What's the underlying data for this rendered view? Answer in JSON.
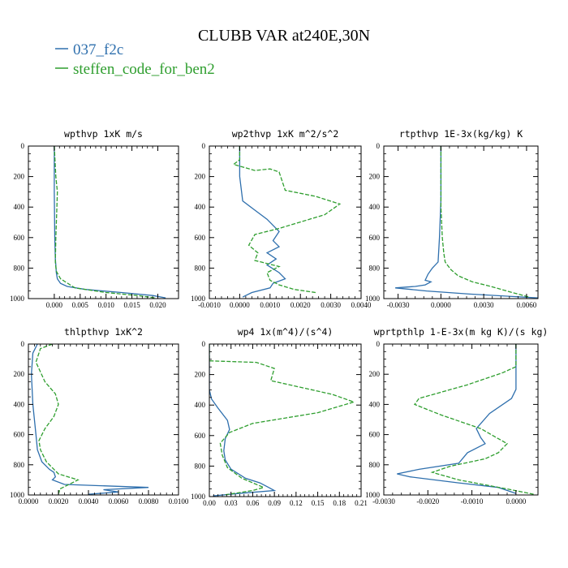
{
  "title": "CLUBB VAR at240E,30N",
  "legend": [
    {
      "name": "037_f2c",
      "color": "#2e6fad",
      "dash": "solid"
    },
    {
      "name": "steffen_code_for_ben2",
      "color": "#2e9e2e",
      "dash": "dashed"
    }
  ],
  "chart_data": [
    {
      "type": "line",
      "title": "wpthvp  1xK m/s",
      "xlim": [
        -0.005,
        0.024
      ],
      "ylim": [
        0,
        1000
      ],
      "y_inverted": true,
      "xticks": [
        0.0,
        0.005,
        0.01,
        0.015,
        0.02
      ],
      "xtick_labels": [
        "0.000",
        "0.005",
        "0.010",
        "0.015",
        "0.020"
      ],
      "yticks": [
        0,
        200,
        400,
        600,
        800,
        1000
      ],
      "ytick_labels": [
        "0",
        "200",
        "400",
        "600",
        "800",
        "1000"
      ],
      "series": [
        {
          "name": "037_f2c",
          "x": [
            0,
            0,
            0.0001,
            0.0002,
            0.0003,
            0.0004,
            0.0006,
            0.0012,
            0.0025,
            0.006,
            0.013,
            0.019,
            0.0215
          ],
          "y": [
            0,
            300,
            600,
            740,
            780,
            830,
            870,
            900,
            920,
            940,
            960,
            980,
            995
          ]
        },
        {
          "name": "steffen_code_for_ben2",
          "x": [
            0,
            0.0003,
            0.0006,
            0.0005,
            0.0003,
            0.0002,
            0.0004,
            0.0012,
            0.004,
            0.01,
            0.016,
            0.0195
          ],
          "y": [
            0,
            200,
            300,
            400,
            600,
            760,
            820,
            870,
            930,
            960,
            980,
            995
          ]
        }
      ]
    },
    {
      "type": "line",
      "title": "wp2thvp  1xK m^2/s^2",
      "xlim": [
        -0.001,
        0.004
      ],
      "ylim": [
        0,
        1000
      ],
      "y_inverted": true,
      "xticks": [
        -0.001,
        0.0,
        0.001,
        0.002,
        0.003,
        0.004
      ],
      "xtick_labels": [
        "-0.0010",
        "0.0000",
        "0.0010",
        "0.0020",
        "0.0030",
        "0.0040"
      ],
      "yticks": [
        0,
        200,
        400,
        600,
        800,
        1000
      ],
      "ytick_labels": [
        "0",
        "200",
        "400",
        "600",
        "800",
        "1000"
      ],
      "series": [
        {
          "name": "037_f2c",
          "x": [
            0,
            0,
            0.0001,
            0.0005,
            0.0009,
            0.0013,
            0.0011,
            0.0013,
            0.0009,
            0.0012,
            0.0009,
            0.0013,
            0.0015,
            0.0011,
            0.001,
            0.0004,
            0.0001
          ],
          "y": [
            0,
            200,
            360,
            420,
            480,
            560,
            620,
            660,
            700,
            740,
            780,
            830,
            870,
            900,
            930,
            960,
            990
          ]
        },
        {
          "name": "steffen_code_for_ben2",
          "x": [
            0,
            0.0,
            -0.0002,
            0.0005,
            0.001,
            0.0013,
            0.0015,
            0.0025,
            0.0033,
            0.0028,
            0.0013,
            0.0005,
            0.0003,
            0.0006,
            0.0005,
            0.0013,
            0.0009,
            0.001,
            0.0013,
            0.0018,
            0.0025
          ],
          "y": [
            0,
            90,
            120,
            160,
            150,
            170,
            290,
            330,
            380,
            450,
            540,
            580,
            650,
            700,
            750,
            790,
            830,
            880,
            910,
            940,
            960
          ]
        }
      ]
    },
    {
      "type": "line",
      "title": "rtpthvp  1E-3x(kg/kg) K",
      "xlim": [
        -0.004,
        0.0068
      ],
      "ylim": [
        0,
        1000
      ],
      "y_inverted": true,
      "xticks": [
        -0.003,
        0.0,
        0.003,
        0.006
      ],
      "xtick_labels": [
        "-0.0030",
        "0.0000",
        "0.0030",
        "0.0060"
      ],
      "yticks": [
        0,
        200,
        400,
        600,
        800,
        1000
      ],
      "ytick_labels": [
        "0",
        "200",
        "400",
        "600",
        "800",
        "1000"
      ],
      "series": [
        {
          "name": "037_f2c",
          "x": [
            0,
            0,
            -0.0001,
            -0.0002,
            -0.0006,
            -0.0009,
            -0.0011,
            -0.0007,
            -0.0011,
            -0.0018,
            -0.0032,
            -0.001,
            0.002,
            0.0068
          ],
          "y": [
            0,
            350,
            600,
            760,
            800,
            840,
            880,
            890,
            910,
            920,
            930,
            950,
            970,
            995
          ]
        },
        {
          "name": "steffen_code_for_ben2",
          "x": [
            0,
            0,
            0.0001,
            0.0002,
            0.0003,
            0.0007,
            0.0012,
            0.0022,
            0.0035,
            0.005,
            0.0062
          ],
          "y": [
            0,
            400,
            600,
            700,
            760,
            810,
            850,
            890,
            920,
            960,
            990
          ]
        }
      ]
    },
    {
      "type": "line",
      "title": "thlpthvp  1xK^2",
      "xlim": [
        0,
        0.01
      ],
      "ylim": [
        0,
        1000
      ],
      "y_inverted": true,
      "xticks": [
        0.0,
        0.002,
        0.004,
        0.006,
        0.008,
        0.01
      ],
      "xtick_labels": [
        "0.0000",
        "0.0020",
        "0.0040",
        "0.0060",
        "0.0080",
        "0.0100"
      ],
      "yticks": [
        0,
        200,
        400,
        600,
        800,
        1000
      ],
      "ytick_labels": [
        "0",
        "200",
        "400",
        "600",
        "800",
        "1000"
      ],
      "series": [
        {
          "name": "037_f2c",
          "x": [
            0.0006,
            0.0003,
            0.0002,
            0.0003,
            0.0005,
            0.0006,
            0.0009,
            0.0014,
            0.0017,
            0.0018,
            0.0016,
            0.0024,
            0.008,
            0.005,
            0.006,
            0.004
          ],
          "y": [
            0,
            60,
            200,
            400,
            600,
            700,
            780,
            830,
            850,
            880,
            900,
            930,
            950,
            965,
            980,
            995
          ]
        },
        {
          "name": "steffen_code_for_ben2",
          "x": [
            0.0016,
            0.0008,
            0.0005,
            0.0011,
            0.0018,
            0.002,
            0.0017,
            0.0011,
            0.0007,
            0.0008,
            0.0012,
            0.002,
            0.0033,
            0.0027,
            0.0021,
            0.002
          ],
          "y": [
            0,
            30,
            120,
            250,
            330,
            400,
            480,
            560,
            640,
            700,
            780,
            860,
            900,
            930,
            960,
            995
          ]
        }
      ]
    },
    {
      "type": "line",
      "title": "wp4  1x(m^4)/(s^4)",
      "xlim": [
        0,
        0.21
      ],
      "ylim": [
        0,
        1000
      ],
      "y_inverted": true,
      "xticks": [
        0.0,
        0.03,
        0.06,
        0.09,
        0.12,
        0.15,
        0.18,
        0.21
      ],
      "xtick_labels": [
        "0.00",
        "0.03",
        "0.06",
        "0.09",
        "0.12",
        "0.15",
        "0.18",
        "0.21"
      ],
      "yticks": [
        0,
        200,
        400,
        600,
        800,
        1000
      ],
      "ytick_labels": [
        "0",
        "200",
        "400",
        "600",
        "800",
        "1000"
      ],
      "series": [
        {
          "name": "037_f2c",
          "x": [
            0,
            0,
            0.003,
            0.012,
            0.025,
            0.028,
            0.022,
            0.02,
            0.022,
            0.03,
            0.05,
            0.07,
            0.082,
            0.09,
            0.04,
            0.005
          ],
          "y": [
            0,
            300,
            360,
            420,
            500,
            560,
            620,
            700,
            760,
            820,
            880,
            910,
            940,
            960,
            980,
            995
          ]
        },
        {
          "name": "steffen_code_for_ben2",
          "x": [
            0,
            0.0,
            0.065,
            0.09,
            0.085,
            0.17,
            0.2,
            0.15,
            0.06,
            0.028,
            0.015,
            0.018,
            0.025,
            0.045,
            0.075,
            0.06,
            0.02
          ],
          "y": [
            0,
            110,
            120,
            160,
            240,
            330,
            380,
            450,
            520,
            580,
            650,
            730,
            810,
            880,
            940,
            960,
            990
          ]
        }
      ]
    },
    {
      "type": "line",
      "title": "wprtpthlp  1-E-3x(m kg K)/(s kg)",
      "xlim": [
        -0.003,
        0.0005
      ],
      "ylim": [
        0,
        1000
      ],
      "y_inverted": true,
      "xticks": [
        -0.003,
        -0.002,
        -0.001,
        0.0
      ],
      "xtick_labels": [
        "-0.0030",
        "-0.0020",
        "-0.0010",
        "0.0000"
      ],
      "yticks": [
        0,
        200,
        400,
        600,
        800,
        1000
      ],
      "ytick_labels": [
        "0",
        "200",
        "400",
        "600",
        "800",
        "1000"
      ],
      "series": [
        {
          "name": "037_f2c",
          "x": [
            0,
            0,
            -0.0001,
            -0.0006,
            -0.0009,
            -0.0008,
            -0.0007,
            -0.0011,
            -0.0013,
            -0.0022,
            -0.0027,
            -0.0024,
            -0.0013,
            -0.0004,
            0.0
          ],
          "y": [
            0,
            300,
            360,
            460,
            560,
            620,
            660,
            720,
            790,
            830,
            860,
            880,
            920,
            950,
            990
          ]
        },
        {
          "name": "steffen_code_for_ben2",
          "x": [
            0,
            0,
            -0.0003,
            -0.0011,
            -0.0022,
            -0.0023,
            -0.0017,
            -0.0008,
            -0.0002,
            -0.0004,
            -0.0007,
            -0.0015,
            -0.0019,
            -0.0013,
            -0.0002,
            0.0004
          ],
          "y": [
            0,
            150,
            190,
            270,
            360,
            400,
            470,
            560,
            660,
            720,
            760,
            810,
            850,
            900,
            960,
            995
          ]
        }
      ]
    }
  ]
}
